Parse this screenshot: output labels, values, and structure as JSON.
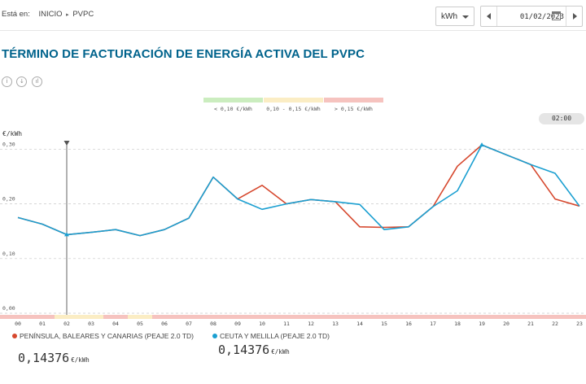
{
  "breadcrumb": {
    "label": "Está en:",
    "items": [
      "INICIO",
      "PVPC"
    ]
  },
  "unit_selector": {
    "value": "kWh"
  },
  "date_picker": {
    "value": "01/02/2023"
  },
  "title": "TÉRMINO DE FACTURACIÓN DE ENERGÍA ACTIVA DEL PVPC",
  "tools": [
    {
      "icon": "info-icon",
      "glyph": "i"
    },
    {
      "icon": "download-icon",
      "glyph": "↓"
    },
    {
      "icon": "chart-type-icon",
      "glyph": "ıl"
    }
  ],
  "price_bands": [
    {
      "label": "< 0,10 €/kWh",
      "color": "#cbedbf"
    },
    {
      "label": "0,10 - 0,15 €/kWh",
      "color": "#fbedc4"
    },
    {
      "label": "> 0,15 €/kWh",
      "color": "#f6c3bf"
    }
  ],
  "selected_hour": "02:00",
  "selected_hour_index": 2,
  "legend": [
    {
      "name": "PENÍNSULA, BALEARES Y CANARIAS (PEAJE 2.0 TD)",
      "color": "#d6482e",
      "value": "0,14376",
      "unit": "€/kWh"
    },
    {
      "name": "CEUTA Y MELILLA (PEAJE 2.0 TD)",
      "color": "#1a9fd1",
      "value": "0,14376",
      "unit": "€/kWh"
    }
  ],
  "chart_data": {
    "type": "line",
    "ylabel": "€/kWh",
    "ylim": [
      0,
      0.32
    ],
    "yticks": [
      "0,00",
      "0,10",
      "0,20",
      "0,30"
    ],
    "ytick_values": [
      0,
      0.1,
      0.2,
      0.3
    ],
    "x": [
      "00",
      "01",
      "02",
      "03",
      "04",
      "05",
      "06",
      "07",
      "08",
      "09",
      "10",
      "11",
      "12",
      "13",
      "14",
      "15",
      "16",
      "17",
      "18",
      "19",
      "20",
      "21",
      "22",
      "23"
    ],
    "hour_band_colors": [
      "red",
      "red",
      "yellow",
      "yellow",
      "red",
      "yellow",
      "red",
      "red",
      "red",
      "red",
      "red",
      "red",
      "red",
      "red",
      "red",
      "red",
      "red",
      "red",
      "red",
      "red",
      "red",
      "red",
      "red",
      "red"
    ],
    "band_color_map": {
      "green": "#cbedbf",
      "yellow": "#fbedc4",
      "red": "#f6c3bf"
    },
    "series": [
      {
        "name": "PENÍNSULA, BALEARES Y CANARIAS (PEAJE 2.0 TD)",
        "color": "#d6482e",
        "values": [
          0.175,
          0.163,
          0.14376,
          0.148,
          0.153,
          0.142,
          0.153,
          0.174,
          0.249,
          0.209,
          0.234,
          0.2,
          0.208,
          0.204,
          0.158,
          0.157,
          0.158,
          0.195,
          0.269,
          0.308,
          0.29,
          0.272,
          0.209,
          0.196
        ]
      },
      {
        "name": "CEUTA Y MELILLA (PEAJE 2.0 TD)",
        "color": "#1a9fd1",
        "values": [
          0.175,
          0.163,
          0.14376,
          0.148,
          0.153,
          0.142,
          0.153,
          0.174,
          0.249,
          0.209,
          0.19,
          0.2,
          0.208,
          0.204,
          0.199,
          0.153,
          0.158,
          0.195,
          0.224,
          0.308,
          0.29,
          0.272,
          0.256,
          0.196
        ]
      }
    ],
    "grid": true
  }
}
